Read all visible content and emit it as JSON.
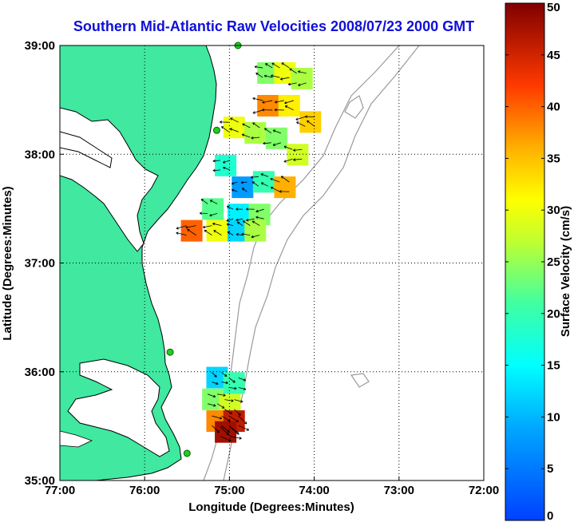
{
  "title": "Southern Mid-Atlantic Raw Velocities 2008/07/23 2000 GMT",
  "x_axis": {
    "label": "Longitude (Degrees:Minutes)",
    "ticks": [
      {
        "value": -77,
        "label": "77:00"
      },
      {
        "value": -76,
        "label": "76:00"
      },
      {
        "value": -75,
        "label": "75:00"
      },
      {
        "value": -74,
        "label": "74:00"
      },
      {
        "value": -73,
        "label": "73:00"
      },
      {
        "value": -72,
        "label": "72:00"
      }
    ],
    "range": [
      -77,
      -72
    ]
  },
  "y_axis": {
    "label": "Latitude (Degrees:Minutes)",
    "ticks": [
      {
        "value": 35,
        "label": "35:00"
      },
      {
        "value": 36,
        "label": "36:00"
      },
      {
        "value": 37,
        "label": "37:00"
      },
      {
        "value": 38,
        "label": "38:00"
      },
      {
        "value": 39,
        "label": "39:00"
      }
    ],
    "range": [
      35,
      39
    ]
  },
  "grid": "dotted",
  "colorbar": {
    "label": "Surface Velocity (cm/s)",
    "min": 0,
    "max": 50,
    "ticks": [
      {
        "value": 0,
        "label": "0"
      },
      {
        "value": 5,
        "label": "5"
      },
      {
        "value": 10,
        "label": "10"
      },
      {
        "value": 15,
        "label": "15"
      },
      {
        "value": 20,
        "label": "20"
      },
      {
        "value": 25,
        "label": "25"
      },
      {
        "value": 30,
        "label": "30"
      },
      {
        "value": 35,
        "label": "35"
      },
      {
        "value": 40,
        "label": "40"
      },
      {
        "value": 45,
        "label": "45"
      },
      {
        "value": 50,
        "label": "50"
      }
    ]
  },
  "colors": {
    "land": "#40e8a0",
    "coastline": "#000000",
    "bathymetry": "#9a9a9a",
    "arrows": "#000000",
    "station": "#22cc22",
    "title": "#1010d8"
  },
  "stations": [
    {
      "lon": -74.9,
      "lat": 39.0
    },
    {
      "lon": -75.15,
      "lat": 38.22
    },
    {
      "lon": -75.7,
      "lat": 36.18
    },
    {
      "lon": -75.5,
      "lat": 35.25
    }
  ],
  "velocity_regions": [
    {
      "name": "northern-field",
      "cells": [
        {
          "lon": -74.55,
          "lat": 38.75,
          "speed": 24
        },
        {
          "lon": -74.35,
          "lat": 38.75,
          "speed": 30
        },
        {
          "lon": -74.15,
          "lat": 38.7,
          "speed": 26
        },
        {
          "lon": -74.55,
          "lat": 38.45,
          "speed": 38
        },
        {
          "lon": -74.3,
          "lat": 38.45,
          "speed": 32
        },
        {
          "lon": -74.05,
          "lat": 38.3,
          "speed": 34
        },
        {
          "lon": -74.95,
          "lat": 38.25,
          "speed": 30
        },
        {
          "lon": -74.7,
          "lat": 38.2,
          "speed": 26
        },
        {
          "lon": -74.45,
          "lat": 38.15,
          "speed": 24
        },
        {
          "lon": -74.2,
          "lat": 38.0,
          "speed": 28
        },
        {
          "lon": -75.05,
          "lat": 37.9,
          "speed": 18
        },
        {
          "lon": -74.85,
          "lat": 37.7,
          "speed": 8
        },
        {
          "lon": -74.6,
          "lat": 37.75,
          "speed": 20
        },
        {
          "lon": -74.35,
          "lat": 37.7,
          "speed": 36
        },
        {
          "lon": -75.2,
          "lat": 37.5,
          "speed": 22
        },
        {
          "lon": -74.9,
          "lat": 37.45,
          "speed": 14
        },
        {
          "lon": -74.65,
          "lat": 37.45,
          "speed": 24
        },
        {
          "lon": -75.45,
          "lat": 37.3,
          "speed": 40
        },
        {
          "lon": -75.15,
          "lat": 37.3,
          "speed": 30
        },
        {
          "lon": -74.9,
          "lat": 37.3,
          "speed": 12
        },
        {
          "lon": -74.7,
          "lat": 37.3,
          "speed": 26
        }
      ]
    },
    {
      "name": "southern-field",
      "cells": [
        {
          "lon": -75.15,
          "lat": 35.95,
          "speed": 12
        },
        {
          "lon": -74.95,
          "lat": 35.9,
          "speed": 20
        },
        {
          "lon": -75.2,
          "lat": 35.75,
          "speed": 24
        },
        {
          "lon": -75.0,
          "lat": 35.7,
          "speed": 28
        },
        {
          "lon": -75.15,
          "lat": 35.55,
          "speed": 38
        },
        {
          "lon": -74.95,
          "lat": 35.55,
          "speed": 46
        },
        {
          "lon": -75.05,
          "lat": 35.45,
          "speed": 48
        }
      ]
    }
  ]
}
